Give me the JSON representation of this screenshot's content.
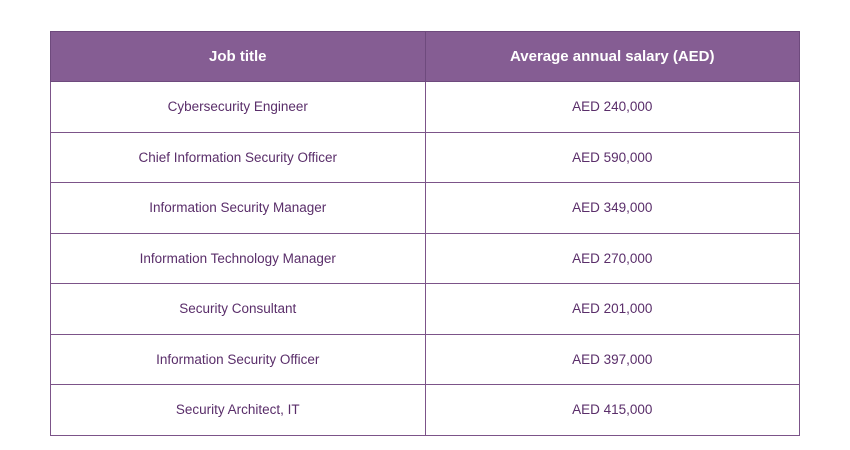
{
  "table": {
    "headers": [
      "Job title",
      "Average annual salary (AED)"
    ],
    "rows": [
      [
        "Cybersecurity Engineer",
        "AED 240,000"
      ],
      [
        "Chief Information Security Officer",
        "AED 590,000"
      ],
      [
        "Information Security Manager",
        "AED 349,000"
      ],
      [
        "Information Technology Manager",
        "AED 270,000"
      ],
      [
        "Security Consultant",
        "AED 201,000"
      ],
      [
        "Information Security Officer",
        "AED 397,000"
      ],
      [
        "Security Architect, IT",
        "AED 415,000"
      ]
    ]
  }
}
